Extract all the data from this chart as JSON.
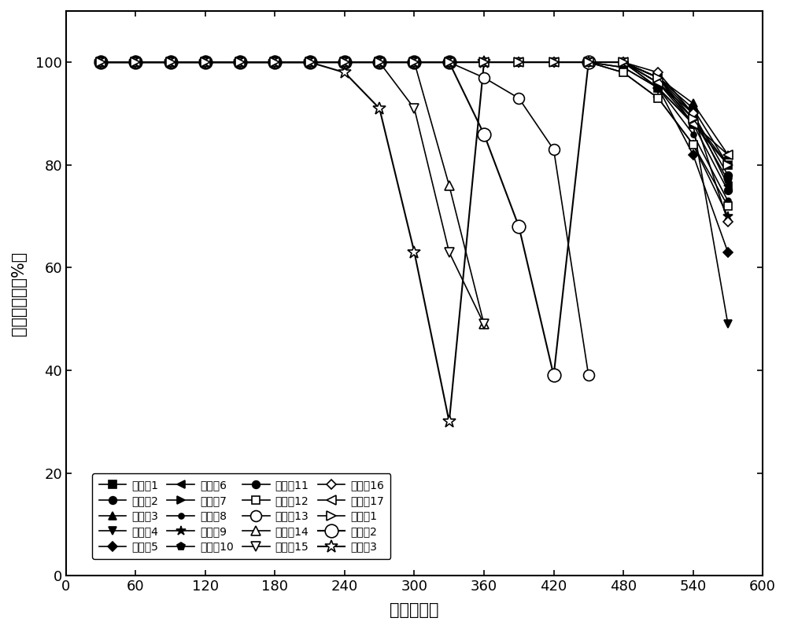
{
  "xlabel": "时间（分）",
  "ylabel": "乙醇去除率（%）",
  "xlim": [
    0,
    600
  ],
  "ylim": [
    0,
    110
  ],
  "xticks": [
    0,
    60,
    120,
    180,
    240,
    300,
    360,
    420,
    480,
    540,
    600
  ],
  "yticks": [
    0,
    20,
    40,
    60,
    80,
    100
  ],
  "legend_order": [
    "实施例1",
    "实施例2",
    "实施例3",
    "实施例4",
    "实施例5",
    "实施例6",
    "实施例7",
    "实施例8",
    "实施例9",
    "实施例10",
    "实施例11",
    "实施例12",
    "实施例13",
    "实施例14",
    "实施例15",
    "实施例16",
    "实施例17",
    "对比例1",
    "对比例2",
    "对比例3"
  ],
  "series": {
    "实施例1": {
      "marker": "s",
      "fill": true,
      "ms": 7,
      "lw": 1.2,
      "x": [
        30,
        60,
        90,
        120,
        150,
        180,
        210,
        240,
        270,
        300,
        330,
        360,
        390,
        420,
        450,
        480,
        510,
        540,
        570
      ],
      "y": [
        100,
        100,
        100,
        100,
        100,
        100,
        100,
        100,
        100,
        100,
        100,
        100,
        100,
        100,
        100,
        100,
        95,
        88,
        80
      ]
    },
    "实施例2": {
      "marker": "o",
      "fill": true,
      "ms": 7,
      "lw": 1.2,
      "x": [
        30,
        60,
        90,
        120,
        150,
        180,
        210,
        240,
        270,
        300,
        330,
        360,
        390,
        420,
        450,
        480,
        510,
        540,
        570
      ],
      "y": [
        100,
        100,
        100,
        100,
        100,
        100,
        100,
        100,
        100,
        100,
        100,
        100,
        100,
        100,
        100,
        100,
        96,
        90,
        78
      ]
    },
    "实施例3": {
      "marker": "^",
      "fill": true,
      "ms": 7,
      "lw": 1.2,
      "x": [
        30,
        60,
        90,
        120,
        150,
        180,
        210,
        240,
        270,
        300,
        330,
        360,
        390,
        420,
        450,
        480,
        510,
        540,
        570
      ],
      "y": [
        100,
        100,
        100,
        100,
        100,
        100,
        100,
        100,
        100,
        100,
        100,
        100,
        100,
        100,
        100,
        100,
        97,
        92,
        82
      ]
    },
    "实施例4": {
      "marker": "v",
      "fill": true,
      "ms": 7,
      "lw": 1.2,
      "x": [
        30,
        60,
        90,
        120,
        150,
        180,
        210,
        240,
        270,
        300,
        330,
        360,
        390,
        420,
        450,
        480,
        510,
        540,
        570
      ],
      "y": [
        100,
        100,
        100,
        100,
        100,
        100,
        100,
        100,
        100,
        100,
        100,
        100,
        100,
        100,
        100,
        100,
        97,
        88,
        49
      ]
    },
    "实施例5": {
      "marker": "D",
      "fill": true,
      "ms": 6,
      "lw": 1.2,
      "x": [
        30,
        60,
        90,
        120,
        150,
        180,
        210,
        240,
        270,
        300,
        330,
        360,
        390,
        420,
        450,
        480,
        510,
        540,
        570
      ],
      "y": [
        100,
        100,
        100,
        100,
        100,
        100,
        100,
        100,
        100,
        100,
        100,
        100,
        100,
        100,
        100,
        100,
        95,
        82,
        63
      ]
    },
    "实施例6": {
      "marker": "<",
      "fill": true,
      "ms": 7,
      "lw": 1.2,
      "x": [
        30,
        60,
        90,
        120,
        150,
        180,
        210,
        240,
        270,
        300,
        330,
        360,
        390,
        420,
        450,
        480,
        510,
        540,
        570
      ],
      "y": [
        100,
        100,
        100,
        100,
        100,
        100,
        100,
        100,
        100,
        100,
        100,
        100,
        100,
        100,
        100,
        100,
        97,
        90,
        76
      ]
    },
    "实施例7": {
      "marker": ">",
      "fill": true,
      "ms": 7,
      "lw": 1.2,
      "x": [
        30,
        60,
        90,
        120,
        150,
        180,
        210,
        240,
        270,
        300,
        330,
        360,
        390,
        420,
        450,
        480,
        510,
        540,
        570
      ],
      "y": [
        100,
        100,
        100,
        100,
        100,
        100,
        100,
        100,
        100,
        100,
        100,
        100,
        100,
        100,
        100,
        100,
        97,
        91,
        80
      ]
    },
    "实施例8": {
      "marker": "o",
      "fill": true,
      "ms": 5,
      "lw": 1.2,
      "x": [
        30,
        60,
        90,
        120,
        150,
        180,
        210,
        240,
        270,
        300,
        330,
        360,
        390,
        420,
        450,
        480,
        510,
        540,
        570
      ],
      "y": [
        100,
        100,
        100,
        100,
        100,
        100,
        100,
        100,
        100,
        100,
        100,
        100,
        100,
        100,
        100,
        99,
        95,
        86,
        73
      ]
    },
    "实施例9": {
      "marker": "*",
      "fill": true,
      "ms": 9,
      "lw": 1.2,
      "x": [
        30,
        60,
        90,
        120,
        150,
        180,
        210,
        240,
        270,
        300,
        330,
        360,
        390,
        420,
        450,
        480,
        510,
        540,
        570
      ],
      "y": [
        100,
        100,
        100,
        100,
        100,
        100,
        100,
        100,
        100,
        100,
        100,
        100,
        100,
        100,
        100,
        98,
        93,
        84,
        70
      ]
    },
    "实施例10": {
      "marker": "p",
      "fill": true,
      "ms": 7,
      "lw": 1.2,
      "x": [
        30,
        60,
        90,
        120,
        150,
        180,
        210,
        240,
        270,
        300,
        330,
        360,
        390,
        420,
        450,
        480,
        510,
        540,
        570
      ],
      "y": [
        100,
        100,
        100,
        100,
        100,
        100,
        100,
        100,
        100,
        100,
        100,
        100,
        100,
        100,
        100,
        100,
        96,
        89,
        77
      ]
    },
    "实施例11": {
      "marker": "o",
      "fill": true,
      "ms": 7,
      "lw": 1.2,
      "x": [
        30,
        60,
        90,
        120,
        150,
        180,
        210,
        240,
        270,
        300,
        330,
        360,
        390,
        420,
        450,
        480,
        510,
        540,
        570
      ],
      "y": [
        100,
        100,
        100,
        100,
        100,
        100,
        100,
        100,
        100,
        100,
        100,
        100,
        100,
        100,
        100,
        99,
        95,
        88,
        75
      ]
    },
    "实施例12": {
      "marker": "s",
      "fill": false,
      "ms": 7,
      "lw": 1.2,
      "x": [
        30,
        60,
        90,
        120,
        150,
        180,
        210,
        240,
        270,
        300,
        330,
        360,
        390,
        420,
        450,
        480,
        510,
        540,
        570
      ],
      "y": [
        100,
        100,
        100,
        100,
        100,
        100,
        100,
        100,
        100,
        100,
        100,
        100,
        100,
        100,
        100,
        98,
        93,
        84,
        72
      ]
    },
    "实施例13": {
      "marker": "o",
      "fill": false,
      "ms": 10,
      "lw": 1.2,
      "x": [
        30,
        60,
        90,
        120,
        150,
        180,
        210,
        240,
        270,
        300,
        330,
        360,
        390,
        420,
        450
      ],
      "y": [
        100,
        100,
        100,
        100,
        100,
        100,
        100,
        100,
        100,
        100,
        100,
        97,
        93,
        83,
        39
      ]
    },
    "实施例14": {
      "marker": "^",
      "fill": false,
      "ms": 9,
      "lw": 1.2,
      "x": [
        30,
        60,
        90,
        120,
        150,
        180,
        210,
        240,
        270,
        300,
        330,
        360
      ],
      "y": [
        100,
        100,
        100,
        100,
        100,
        100,
        100,
        100,
        100,
        100,
        76,
        49
      ]
    },
    "实施例15": {
      "marker": "v",
      "fill": false,
      "ms": 9,
      "lw": 1.2,
      "x": [
        30,
        60,
        90,
        120,
        150,
        180,
        210,
        240,
        270,
        300,
        330,
        360
      ],
      "y": [
        100,
        100,
        100,
        100,
        100,
        100,
        100,
        100,
        100,
        91,
        63,
        49
      ]
    },
    "实施例16": {
      "marker": "D",
      "fill": false,
      "ms": 6,
      "lw": 1.2,
      "x": [
        30,
        60,
        90,
        120,
        150,
        180,
        210,
        240,
        270,
        300,
        330,
        360,
        390,
        420,
        450,
        480,
        510,
        540,
        570
      ],
      "y": [
        100,
        100,
        100,
        100,
        100,
        100,
        100,
        100,
        100,
        100,
        100,
        100,
        100,
        100,
        100,
        100,
        98,
        90,
        69
      ]
    },
    "实施例17": {
      "marker": "<",
      "fill": false,
      "ms": 9,
      "lw": 1.2,
      "x": [
        30,
        60,
        90,
        120,
        150,
        180,
        210,
        240,
        270,
        300,
        330,
        360,
        390,
        420,
        450,
        480,
        510,
        540,
        570
      ],
      "y": [
        100,
        100,
        100,
        100,
        100,
        100,
        100,
        100,
        100,
        100,
        100,
        100,
        100,
        100,
        100,
        100,
        96,
        88,
        82
      ]
    },
    "对比例1": {
      "marker": ">",
      "fill": false,
      "ms": 9,
      "lw": 1.2,
      "x": [
        30,
        60,
        90,
        120,
        150,
        180,
        210,
        240,
        270,
        300,
        330,
        360,
        390,
        420,
        450,
        480,
        510,
        540,
        570
      ],
      "y": [
        100,
        100,
        100,
        100,
        100,
        100,
        100,
        100,
        100,
        100,
        100,
        100,
        100,
        100,
        100,
        100,
        97,
        89,
        80
      ]
    },
    "对比例2": {
      "marker": "o",
      "fill": false,
      "ms": 12,
      "lw": 1.5,
      "x": [
        30,
        60,
        90,
        120,
        150,
        180,
        210,
        240,
        270,
        300,
        330,
        360,
        390,
        420,
        450
      ],
      "y": [
        100,
        100,
        100,
        100,
        100,
        100,
        100,
        100,
        100,
        100,
        100,
        86,
        68,
        39,
        100
      ]
    },
    "对比例3": {
      "marker": "*",
      "fill": false,
      "ms": 12,
      "lw": 1.5,
      "x": [
        30,
        60,
        90,
        120,
        150,
        180,
        210,
        240,
        270,
        300,
        330,
        360
      ],
      "y": [
        100,
        100,
        100,
        100,
        100,
        100,
        100,
        98,
        91,
        63,
        30,
        100
      ]
    }
  }
}
